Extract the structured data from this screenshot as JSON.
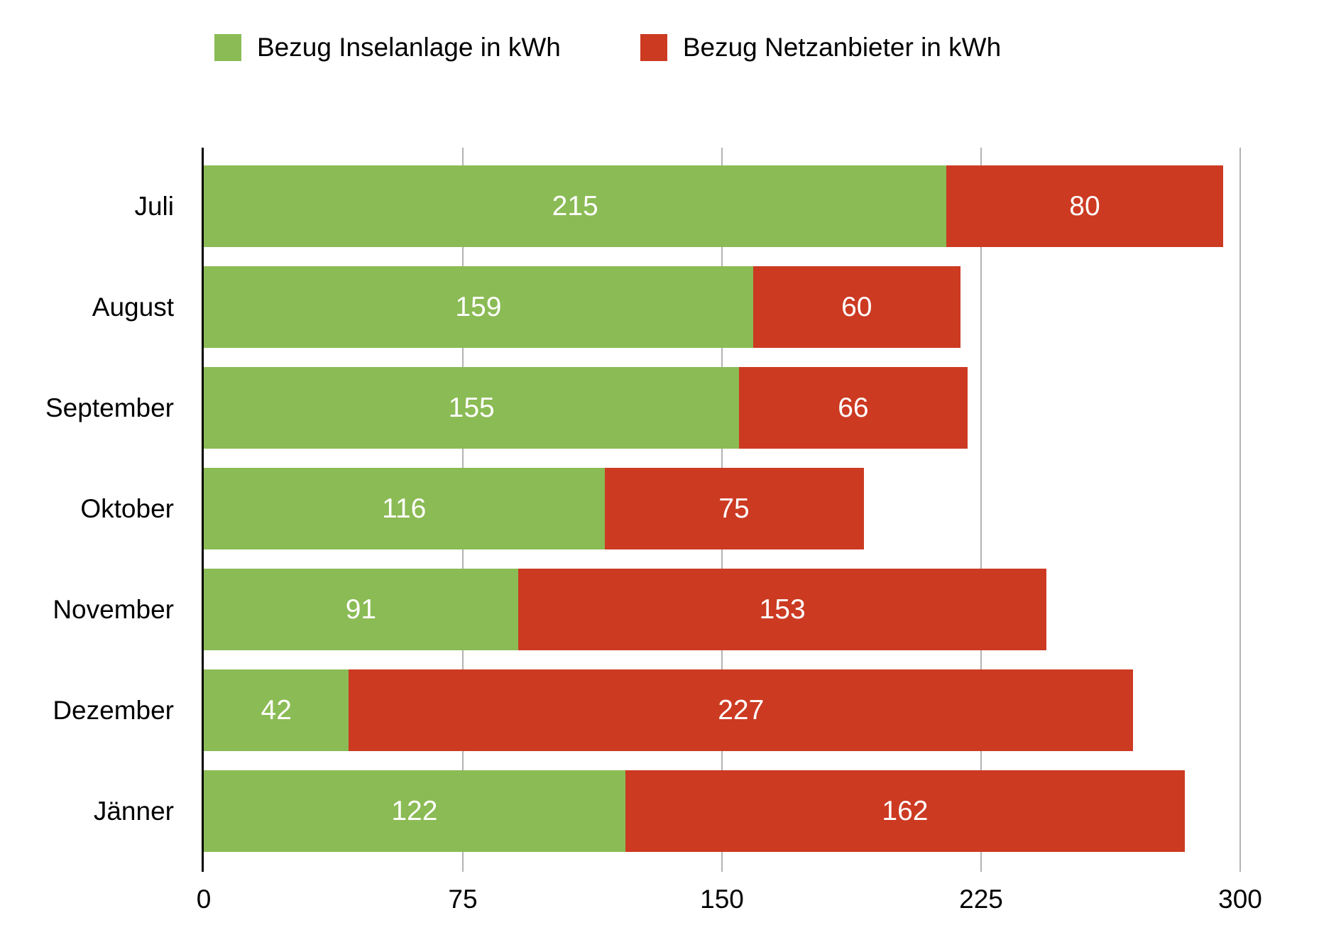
{
  "background": "#ffffff",
  "legend": {
    "position": "top",
    "items": [
      {
        "label": "Bezug Inselanlage in kWh",
        "color": "#8BBB55"
      },
      {
        "label": "Bezug Netzanbieter in kWh",
        "color": "#CC3A22"
      }
    ]
  },
  "chart_data": {
    "type": "bar",
    "orientation": "horizontal",
    "stacked": true,
    "title": "",
    "xlabel": "",
    "ylabel": "",
    "categories": [
      "Juli",
      "August",
      "September",
      "Oktober",
      "November",
      "Dezember",
      "Jänner"
    ],
    "series": [
      {
        "name": "Bezug Inselanlage in kWh",
        "color": "#8BBB55",
        "values": [
          215,
          159,
          155,
          116,
          91,
          42,
          122
        ]
      },
      {
        "name": "Bezug Netzanbieter in kWh",
        "color": "#CC3A22",
        "values": [
          80,
          60,
          66,
          75,
          153,
          227,
          162
        ]
      }
    ],
    "totals": [
      295,
      219,
      221,
      191,
      244,
      269,
      284
    ],
    "xlim": [
      0,
      300
    ],
    "x_ticks": [
      0,
      75,
      150,
      225,
      300
    ],
    "x_tick_labels": [
      "0",
      "75",
      "150",
      "225",
      "300"
    ],
    "grid": true,
    "gridline_color": "#b3b3b3",
    "axis_color": "#000000",
    "value_labels": "inside-center",
    "value_label_color": "#ffffff",
    "legend_position": "top"
  }
}
